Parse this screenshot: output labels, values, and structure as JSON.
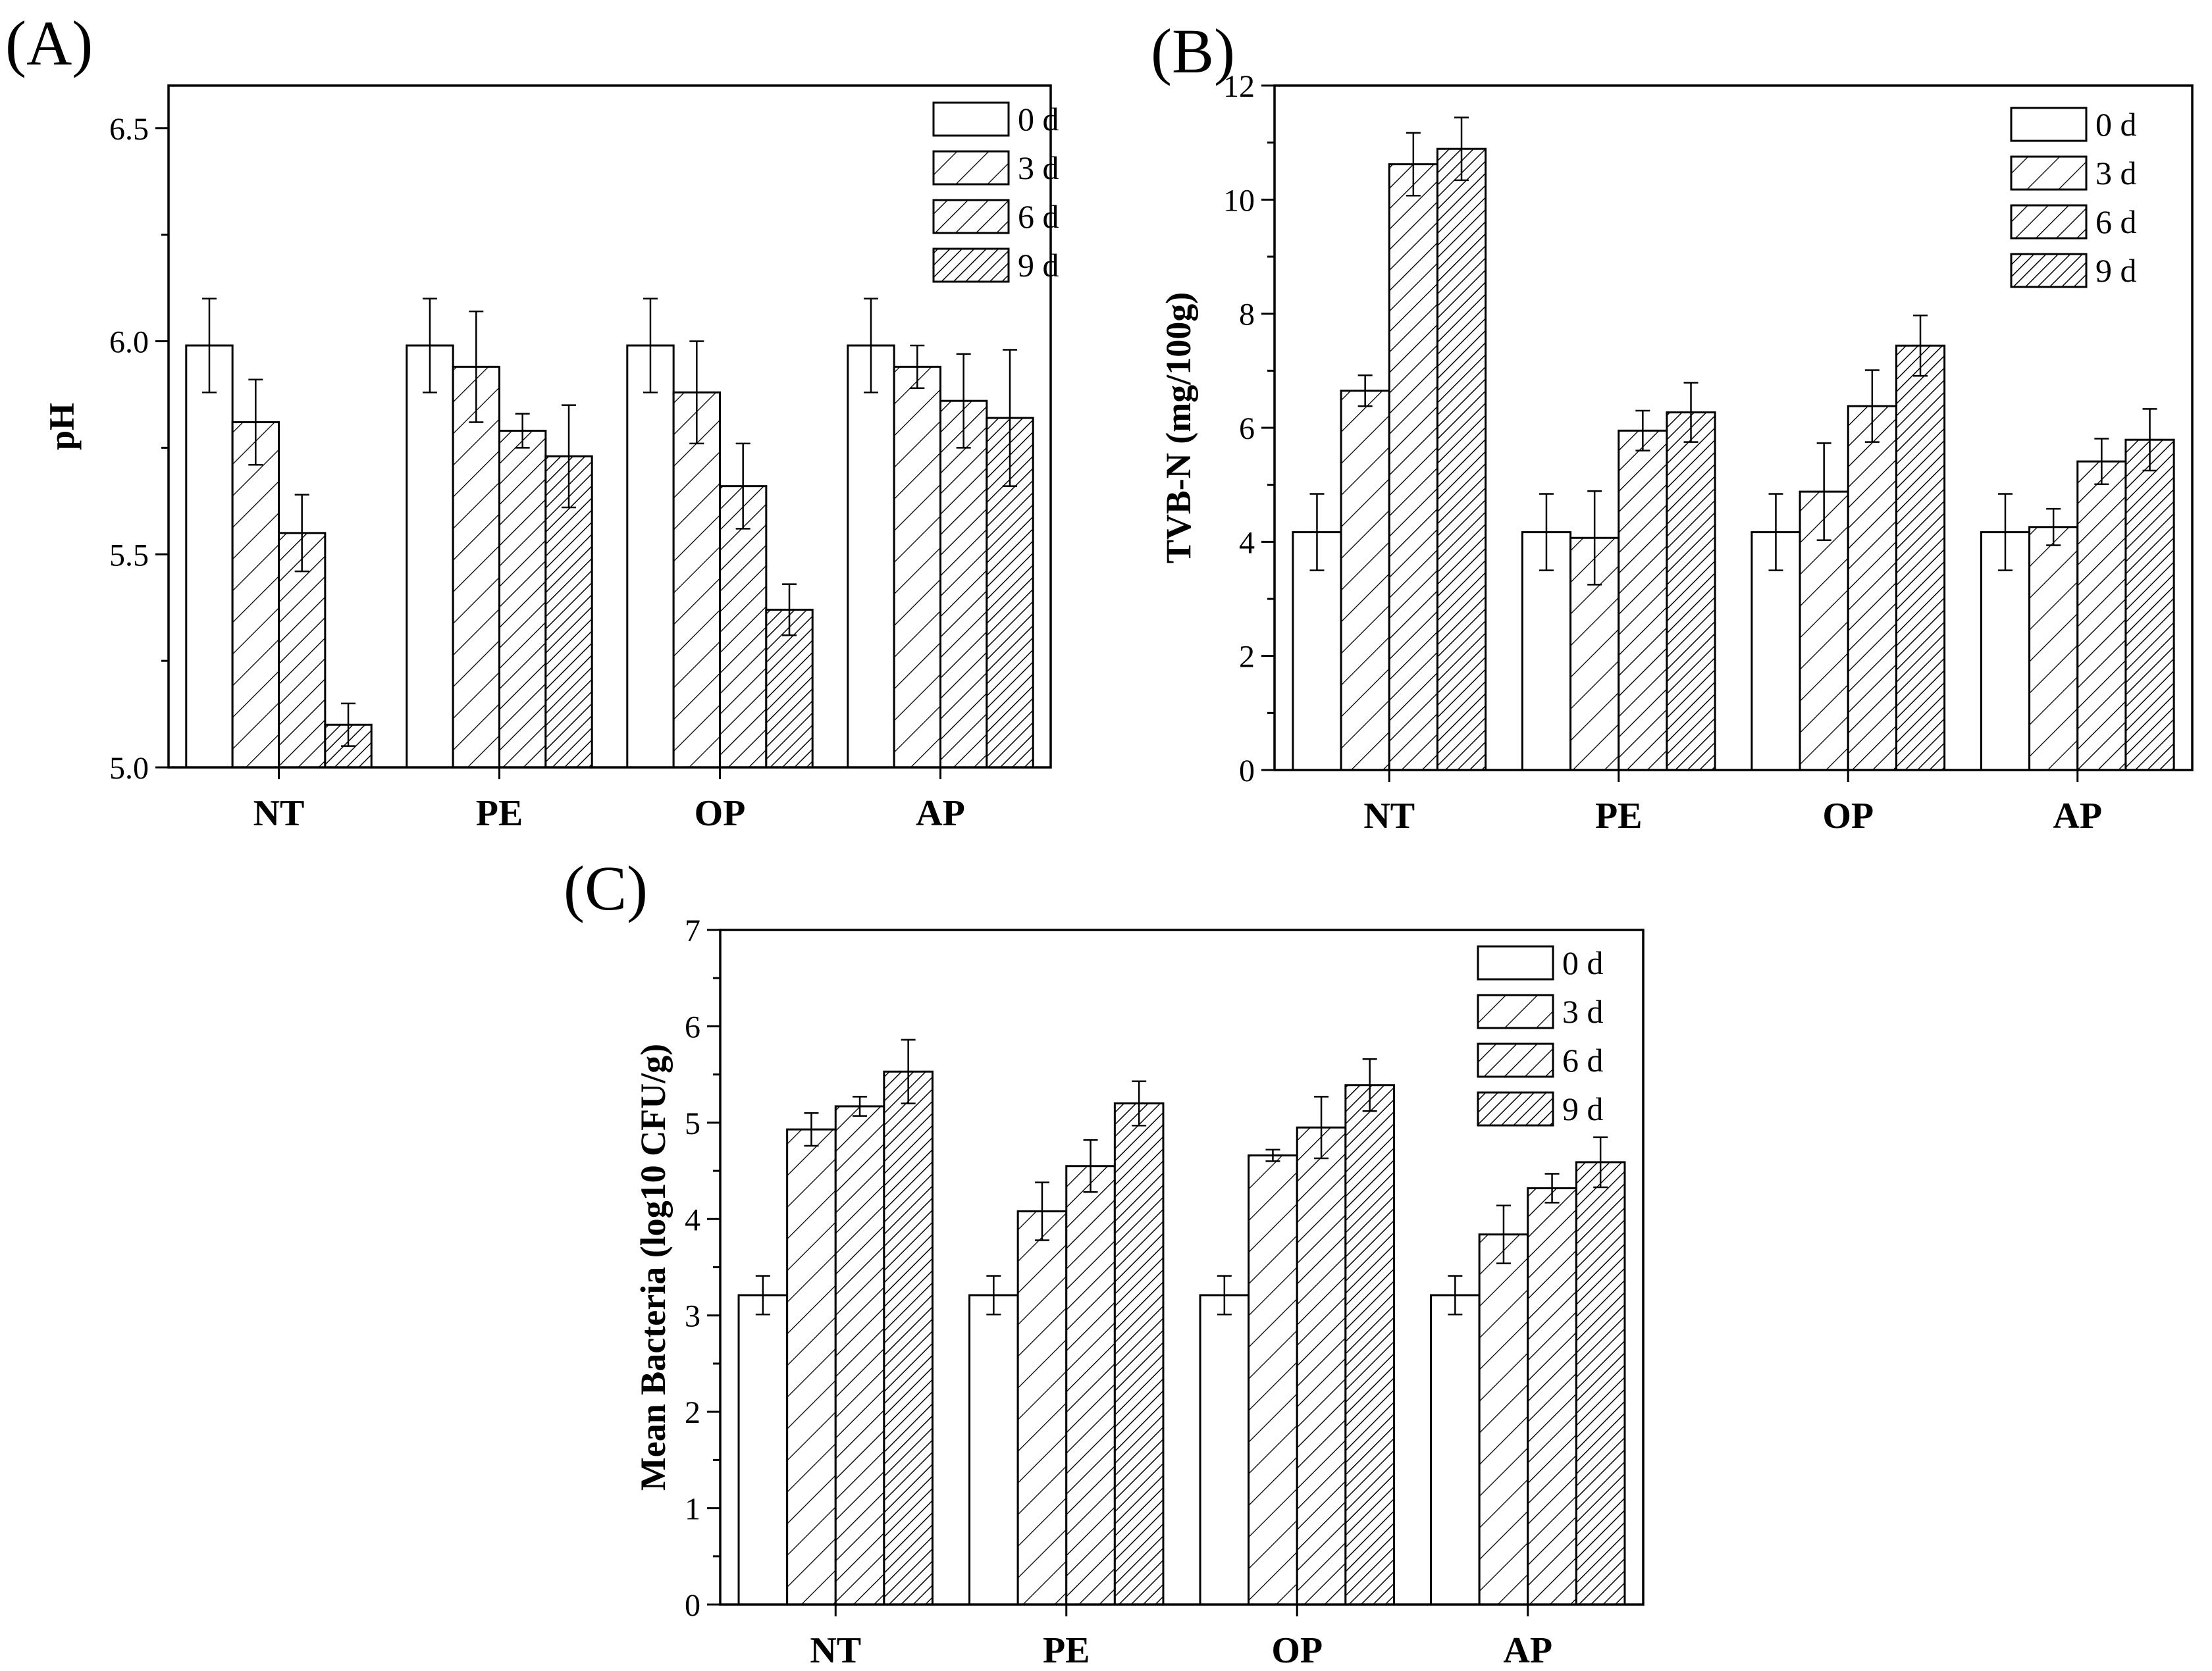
{
  "figure": {
    "panels": [
      "A",
      "B",
      "C"
    ]
  },
  "chart_data": [
    {
      "panel_label": "(A)",
      "type": "bar",
      "ylabel": "pH",
      "xlabel": "",
      "ylim": [
        5.0,
        6.6
      ],
      "yticks": [
        5.0,
        5.5,
        6.0,
        6.5
      ],
      "ytick_labels": [
        "5.0",
        "5.5",
        "6.0",
        "6.5"
      ],
      "categories": [
        "NT",
        "PE",
        "OP",
        "AP"
      ],
      "legend_position": "top-right",
      "series": [
        {
          "name": "0 d",
          "pattern": "none",
          "values": [
            5.99,
            5.99,
            5.99,
            5.99
          ],
          "errors": [
            0.11,
            0.11,
            0.11,
            0.11
          ]
        },
        {
          "name": "3 d",
          "pattern": "sparse",
          "values": [
            5.81,
            5.94,
            5.88,
            5.94
          ],
          "errors": [
            0.1,
            0.13,
            0.12,
            0.05
          ]
        },
        {
          "name": "6 d",
          "pattern": "medium",
          "values": [
            5.55,
            5.79,
            5.66,
            5.86
          ],
          "errors": [
            0.09,
            0.04,
            0.1,
            0.11
          ]
        },
        {
          "name": "9 d",
          "pattern": "dense",
          "values": [
            5.1,
            5.73,
            5.37,
            5.82
          ],
          "errors": [
            0.05,
            0.12,
            0.06,
            0.16
          ]
        }
      ]
    },
    {
      "panel_label": "(B)",
      "type": "bar",
      "ylabel": "TVB-N (mg/100g)",
      "xlabel": "",
      "ylim": [
        0,
        12
      ],
      "yticks": [
        0,
        2,
        4,
        6,
        8,
        10,
        12
      ],
      "ytick_labels": [
        "0",
        "2",
        "4",
        "6",
        "8",
        "10",
        "12"
      ],
      "categories": [
        "NT",
        "PE",
        "OP",
        "AP"
      ],
      "legend_position": "top-right",
      "series": [
        {
          "name": "0 d",
          "pattern": "none",
          "values": [
            4.17,
            4.17,
            4.17,
            4.17
          ],
          "errors": [
            0.67,
            0.67,
            0.67,
            0.67
          ]
        },
        {
          "name": "3 d",
          "pattern": "sparse",
          "values": [
            6.65,
            4.07,
            4.88,
            4.26
          ],
          "errors": [
            0.27,
            0.82,
            0.85,
            0.32
          ]
        },
        {
          "name": "6 d",
          "pattern": "medium",
          "values": [
            10.62,
            5.95,
            6.38,
            5.41
          ],
          "errors": [
            0.55,
            0.35,
            0.63,
            0.4
          ]
        },
        {
          "name": "9 d",
          "pattern": "dense",
          "values": [
            10.89,
            6.27,
            7.44,
            5.79
          ],
          "errors": [
            0.55,
            0.52,
            0.53,
            0.54
          ]
        }
      ]
    },
    {
      "panel_label": "(C)",
      "type": "bar",
      "ylabel": "Mean Bacteria (log10 CFU/g)",
      "xlabel": "",
      "ylim": [
        0,
        7
      ],
      "yticks": [
        0,
        1,
        2,
        3,
        4,
        5,
        6,
        7
      ],
      "ytick_labels": [
        "0",
        "1",
        "2",
        "3",
        "4",
        "5",
        "6",
        "7"
      ],
      "categories": [
        "NT",
        "PE",
        "OP",
        "AP"
      ],
      "legend_position": "top-right",
      "series": [
        {
          "name": "0 d",
          "pattern": "none",
          "values": [
            3.21,
            3.21,
            3.21,
            3.21
          ],
          "errors": [
            0.2,
            0.2,
            0.2,
            0.2
          ]
        },
        {
          "name": "3 d",
          "pattern": "sparse",
          "values": [
            4.93,
            4.08,
            4.66,
            3.84
          ],
          "errors": [
            0.17,
            0.3,
            0.06,
            0.3
          ]
        },
        {
          "name": "6 d",
          "pattern": "medium",
          "values": [
            5.17,
            4.55,
            4.95,
            4.32
          ],
          "errors": [
            0.1,
            0.27,
            0.32,
            0.15
          ]
        },
        {
          "name": "9 d",
          "pattern": "dense",
          "values": [
            5.53,
            5.2,
            5.39,
            4.59
          ],
          "errors": [
            0.33,
            0.23,
            0.27,
            0.26
          ]
        }
      ]
    }
  ]
}
